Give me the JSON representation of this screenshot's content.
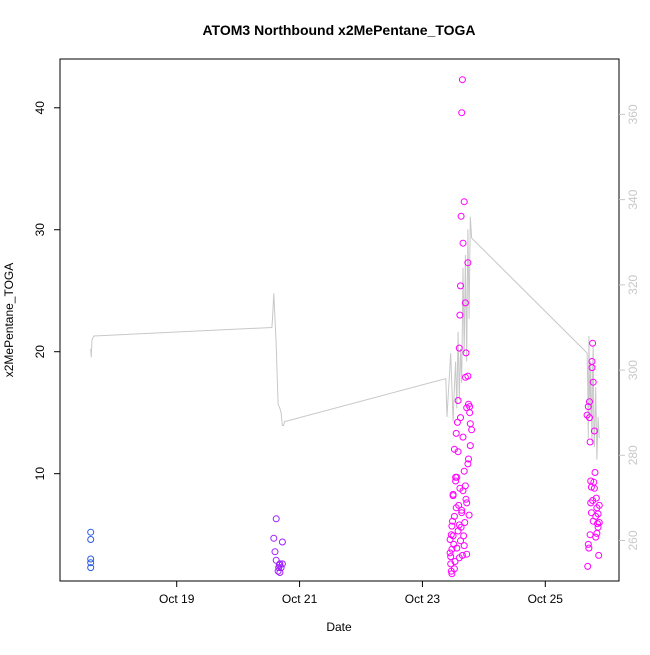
{
  "chart_data": {
    "type": "scatter",
    "title": "ATOM3 Northbound x2MePentane_TOGA",
    "xlabel": "Date",
    "ylabel": "x2MePentane_TOGA",
    "x_ticks": [
      "Oct 19",
      "Oct 21",
      "Oct 23",
      "Oct 25"
    ],
    "x_tick_days": [
      19,
      21,
      23,
      25
    ],
    "xlim_days": [
      17.1,
      26.2
    ],
    "y_ticks": [
      10,
      20,
      30,
      40
    ],
    "ylim": [
      1.2,
      44
    ],
    "y2_ticks": [
      260,
      280,
      300,
      320,
      340,
      360
    ],
    "y2lim": [
      250.5,
      373
    ],
    "grid": false,
    "point_color_low": "#2a5ce0",
    "point_color_high": "#ff00ff",
    "line_color": "#c8c8c8",
    "axis_color": "#000000",
    "y2_axis_color": "#c8c8c8",
    "series": [
      {
        "type": "scatter",
        "x_days": [
          17.6,
          17.6,
          17.6,
          17.6,
          17.6,
          20.58,
          20.6,
          20.62,
          20.62,
          20.65,
          20.66,
          20.67,
          20.68,
          20.68,
          20.7,
          20.72,
          20.72,
          23.45,
          23.46,
          23.47,
          23.48,
          23.5,
          23.52,
          23.54,
          23.55,
          23.57,
          23.58,
          23.6,
          23.61,
          23.62,
          23.63,
          23.64,
          23.65,
          23.66,
          23.68,
          23.7,
          23.71,
          23.72,
          23.74,
          23.75,
          23.77,
          23.78,
          23.8,
          23.46,
          23.48,
          23.5,
          23.52,
          23.55,
          23.58,
          23.6,
          23.62,
          23.64,
          23.66,
          23.68,
          23.7,
          23.72,
          23.75,
          23.78,
          23.45,
          23.47,
          23.49,
          23.51,
          23.53,
          23.56,
          23.59,
          23.61,
          23.63,
          23.65,
          23.67,
          23.69,
          23.71,
          23.74,
          23.77,
          23.48,
          23.52,
          23.56,
          23.6,
          23.64,
          23.68,
          23.72,
          23.76,
          23.5,
          23.54,
          23.58,
          23.62,
          23.66,
          23.7,
          23.74,
          25.68,
          25.7,
          25.72,
          25.73,
          25.74,
          25.75,
          25.76,
          25.77,
          25.78,
          25.8,
          25.82,
          25.84,
          25.86,
          25.88,
          25.69,
          25.71,
          25.73,
          25.75,
          25.77,
          25.79,
          25.81,
          25.83,
          25.85,
          25.87,
          25.7,
          25.74,
          25.78,
          25.82,
          25.86,
          25.72,
          25.76,
          25.8,
          25.84,
          25.88
        ],
        "y": [
          5.2,
          4.6,
          3.0,
          2.7,
          2.3,
          4.7,
          3.6,
          6.3,
          2.9,
          2.0,
          2.3,
          2.5,
          1.9,
          2.6,
          2.3,
          2.6,
          4.4,
          4.6,
          3.2,
          2.0,
          5.7,
          8.2,
          12.0,
          9.7,
          13.3,
          14.2,
          16.0,
          20.3,
          23.0,
          25.4,
          31.1,
          39.6,
          42.3,
          28.9,
          32.3,
          24.0,
          19.9,
          15.4,
          27.3,
          15.7,
          15.5,
          12.3,
          13.6,
          2.6,
          3.8,
          4.9,
          6.5,
          7.2,
          5.3,
          3.1,
          4.5,
          6.8,
          8.6,
          10.2,
          9.0,
          7.6,
          11.2,
          14.1,
          3.5,
          5.0,
          6.1,
          4.2,
          2.8,
          9.7,
          7.4,
          8.8,
          5.6,
          3.3,
          4.9,
          6.0,
          7.9,
          10.8,
          15.0,
          1.8,
          2.2,
          3.9,
          5.8,
          7.0,
          4.1,
          3.4,
          6.6,
          8.3,
          9.4,
          11.8,
          14.6,
          13.0,
          17.9,
          18.0,
          14.8,
          15.5,
          15.9,
          12.6,
          9.4,
          8.9,
          19.2,
          20.7,
          17.5,
          13.5,
          6.5,
          5.1,
          6.7,
          7.4,
          2.4,
          3.9,
          5.0,
          6.8,
          7.8,
          9.3,
          10.1,
          8.0,
          5.9,
          3.3,
          4.2,
          7.6,
          6.1,
          4.8,
          5.6,
          14.6,
          18.7,
          8.8,
          7.2,
          6.0
        ]
      },
      {
        "type": "line",
        "axis": "right",
        "x_days": [
          17.6,
          17.61,
          17.62,
          17.65,
          20.55,
          20.56,
          20.58,
          20.62,
          20.65,
          20.68,
          20.7,
          20.72,
          20.74,
          20.76,
          20.78,
          23.38,
          23.4,
          23.42,
          23.44,
          23.46,
          23.48,
          23.5,
          23.52,
          23.54,
          23.56,
          23.58,
          23.6,
          23.62,
          23.64,
          23.66,
          23.68,
          23.7,
          23.72,
          23.74,
          23.76,
          23.78,
          23.8,
          25.68,
          25.69,
          25.7,
          25.71,
          25.72,
          25.73,
          25.74,
          25.75,
          25.76,
          25.77,
          25.78,
          25.79,
          25.8,
          25.82,
          25.84,
          25.86,
          25.88
        ],
        "y2": [
          305,
          303,
          307,
          308,
          310,
          312,
          318,
          306,
          292,
          291,
          290,
          287,
          287,
          288,
          288,
          298,
          289,
          294,
          299,
          304,
          296,
          288,
          296,
          302,
          291,
          309,
          293,
          305,
          297,
          324,
          304,
          327,
          302,
          333,
          312,
          336,
          331,
          304,
          297,
          284,
          308,
          296,
          289,
          302,
          291,
          283,
          300,
          306,
          287,
          282,
          296,
          279,
          289,
          284
        ]
      }
    ]
  }
}
